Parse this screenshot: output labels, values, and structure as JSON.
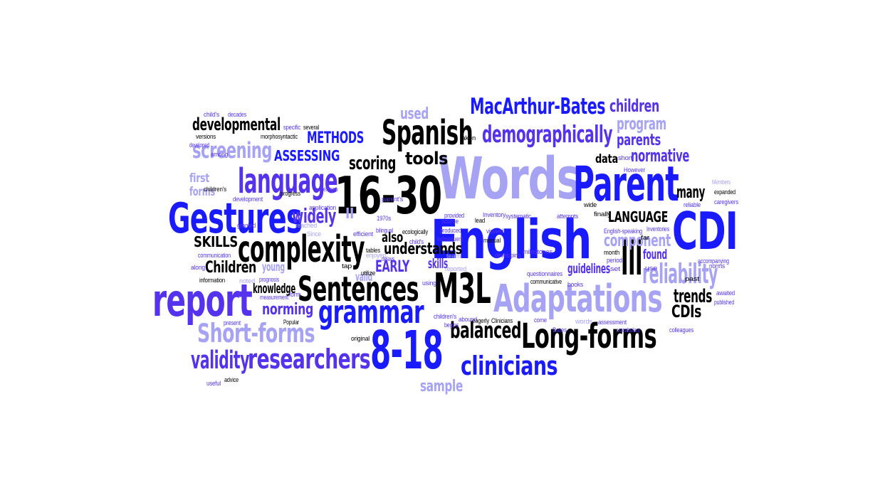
{
  "palette": {
    "black": "#000000",
    "blue": "#1a1aff",
    "violet": "#5533ee",
    "lavender": "#a6a2f4",
    "light": "#c4c1f8"
  },
  "words": [
    {
      "text": "Words",
      "color": "lavender"
    },
    {
      "text": "English",
      "color": "blue"
    },
    {
      "text": "16-30",
      "color": "black"
    },
    {
      "text": "Parent",
      "color": "blue"
    },
    {
      "text": "CDI",
      "color": "blue"
    },
    {
      "text": "Gestures",
      "color": "blue"
    },
    {
      "text": "report",
      "color": "violet"
    },
    {
      "text": "8-18",
      "color": "blue"
    },
    {
      "text": "Adaptations",
      "color": "lavender"
    },
    {
      "text": "M3L",
      "color": "black"
    },
    {
      "text": "Sentences",
      "color": "black"
    },
    {
      "text": "complexity",
      "color": "black"
    },
    {
      "text": "language",
      "color": "violet"
    },
    {
      "text": "Spanish",
      "color": "black"
    },
    {
      "text": "Long-forms",
      "color": "black"
    },
    {
      "text": "III",
      "color": "black"
    },
    {
      "text": "grammar",
      "color": "blue"
    },
    {
      "text": "Short-forms",
      "color": "lavender"
    },
    {
      "text": "researchers",
      "color": "violet"
    },
    {
      "text": "clinicians",
      "color": "blue"
    },
    {
      "text": "validity",
      "color": "violet"
    },
    {
      "text": "MacArthur-Bates",
      "color": "blue"
    },
    {
      "text": "demographically",
      "color": "violet"
    },
    {
      "text": "reliability",
      "color": "lavender"
    },
    {
      "text": "balanced",
      "color": "black"
    },
    {
      "text": "screening",
      "color": "lavender"
    },
    {
      "text": "children",
      "color": "violet"
    },
    {
      "text": "program",
      "color": "lavender"
    },
    {
      "text": "developmental",
      "color": "black"
    },
    {
      "text": "parents",
      "color": "violet"
    },
    {
      "text": "normative",
      "color": "violet"
    },
    {
      "text": "understands",
      "color": "black"
    },
    {
      "text": "trends",
      "color": "black"
    },
    {
      "text": "CDIs",
      "color": "black"
    },
    {
      "text": "tools",
      "color": "black"
    },
    {
      "text": "scoring",
      "color": "black"
    },
    {
      "text": "many",
      "color": "black"
    },
    {
      "text": "widely",
      "color": "violet"
    },
    {
      "text": "Children",
      "color": "black"
    },
    {
      "text": "component",
      "color": "lavender"
    },
    {
      "text": "sample",
      "color": "lavender"
    },
    {
      "text": "used",
      "color": "lavender"
    },
    {
      "text": "METHODS",
      "color": "blue"
    },
    {
      "text": "ASSESSING",
      "color": "blue"
    },
    {
      "text": "LANGUAGE",
      "color": "black"
    },
    {
      "text": "SKILLS",
      "color": "black"
    },
    {
      "text": "EARLY",
      "color": "violet"
    },
    {
      "text": "norming",
      "color": "violet"
    },
    {
      "text": "knowledge",
      "color": "black"
    },
    {
      "text": "guidelines",
      "color": "violet"
    },
    {
      "text": "found",
      "color": "violet"
    },
    {
      "text": "skills",
      "color": "violet"
    },
    {
      "text": "also",
      "color": "black"
    },
    {
      "text": "data",
      "color": "black"
    },
    {
      "text": "first",
      "color": "lavender"
    },
    {
      "text": "young",
      "color": "lavender"
    },
    {
      "text": "valid",
      "color": "lavender"
    },
    {
      "text": "forms",
      "color": "lavender"
    },
    {
      "text": "II",
      "color": "lavender"
    },
    {
      "text": "child's",
      "color": "violet"
    },
    {
      "text": "decades",
      "color": "violet"
    },
    {
      "text": "versions",
      "color": "black"
    },
    {
      "text": "morphosyntactic",
      "color": "black"
    },
    {
      "text": "specific",
      "color": "violet"
    },
    {
      "text": "several",
      "color": "black"
    },
    {
      "text": "taken",
      "color": "black"
    },
    {
      "text": "developed",
      "color": "violet"
    },
    {
      "text": "among",
      "color": "violet"
    },
    {
      "text": "children's",
      "color": "black"
    },
    {
      "text": "progress",
      "color": "black"
    },
    {
      "text": "Mexican",
      "color": "violet"
    },
    {
      "text": "application",
      "color": "violet"
    },
    {
      "text": "reached",
      "color": "lavender"
    },
    {
      "text": "parent's",
      "color": "violet"
    },
    {
      "text": "development",
      "color": "violet"
    },
    {
      "text": "granted",
      "color": "violet"
    },
    {
      "text": "Since",
      "color": "lavender"
    },
    {
      "text": "communication",
      "color": "violet"
    },
    {
      "text": "1970s",
      "color": "violet"
    },
    {
      "text": "efficient",
      "color": "violet"
    },
    {
      "text": "bilingual",
      "color": "violet"
    },
    {
      "text": "ecologically",
      "color": "black"
    },
    {
      "text": "tables",
      "color": "black"
    },
    {
      "text": "enjoyed",
      "color": "lavender"
    },
    {
      "text": "utilize",
      "color": "black"
    },
    {
      "text": "tap",
      "color": "black"
    },
    {
      "text": "along",
      "color": "violet"
    },
    {
      "text": "information",
      "color": "black"
    },
    {
      "text": "noted",
      "color": "lavender"
    },
    {
      "text": "prognosis",
      "color": "violet"
    },
    {
      "text": "measurement",
      "color": "violet"
    },
    {
      "text": "form",
      "color": "violet"
    },
    {
      "text": "present",
      "color": "violet"
    },
    {
      "text": "Popular",
      "color": "black"
    },
    {
      "text": "useful",
      "color": "violet"
    },
    {
      "text": "advice",
      "color": "black"
    },
    {
      "text": "original",
      "color": "black"
    },
    {
      "text": "provided",
      "color": "violet"
    },
    {
      "text": "source",
      "color": "violet"
    },
    {
      "text": "produced",
      "color": "violet"
    },
    {
      "text": "subsequent",
      "color": "violet"
    },
    {
      "text": "child's",
      "color": "violet"
    },
    {
      "text": "team",
      "color": "lavender"
    },
    {
      "text": "reported",
      "color": "lavender"
    },
    {
      "text": "using",
      "color": "violet"
    },
    {
      "text": "children's",
      "color": "violet"
    },
    {
      "text": "abound",
      "color": "violet"
    },
    {
      "text": "eagerly",
      "color": "black"
    },
    {
      "text": "Clinicians",
      "color": "black"
    },
    {
      "text": "begins",
      "color": "violet"
    },
    {
      "text": "developing",
      "color": "violet"
    },
    {
      "text": "lead",
      "color": "black"
    },
    {
      "text": "Inventory",
      "color": "violet"
    },
    {
      "text": "systematic",
      "color": "violet"
    },
    {
      "text": "attempts",
      "color": "violet"
    },
    {
      "text": "viewed",
      "color": "violet"
    },
    {
      "text": "manual",
      "color": "black"
    },
    {
      "text": "milestones",
      "color": "violet"
    },
    {
      "text": "questionnaires",
      "color": "violet"
    },
    {
      "text": "communicative",
      "color": "black"
    },
    {
      "text": "come",
      "color": "violet"
    },
    {
      "text": "books",
      "color": "violet"
    },
    {
      "text": "Bates",
      "color": "violet"
    },
    {
      "text": "words",
      "color": "lavender"
    },
    {
      "text": "assessment",
      "color": "violet"
    },
    {
      "text": "vocabulary",
      "color": "violet"
    },
    {
      "text": "short",
      "color": "violet"
    },
    {
      "text": "However",
      "color": "violet"
    },
    {
      "text": "wide",
      "color": "black"
    },
    {
      "text": "finally",
      "color": "black"
    },
    {
      "text": "English-speaking",
      "color": "violet"
    },
    {
      "text": "Inventories",
      "color": "violet"
    },
    {
      "text": "far",
      "color": "black"
    },
    {
      "text": "month",
      "color": "black"
    },
    {
      "text": "period",
      "color": "violet"
    },
    {
      "text": "set",
      "color": "violet"
    },
    {
      "text": "use",
      "color": "violet"
    },
    {
      "text": "past",
      "color": "black"
    },
    {
      "text": "accompanying",
      "color": "violet"
    },
    {
      "text": "Members",
      "color": "lavender"
    },
    {
      "text": "expanded",
      "color": "black"
    },
    {
      "text": "caregivers",
      "color": "violet"
    },
    {
      "text": "reliable",
      "color": "violet"
    },
    {
      "text": "norms",
      "color": "violet"
    },
    {
      "text": "awaited",
      "color": "violet"
    },
    {
      "text": "published",
      "color": "violet"
    },
    {
      "text": "colleagues",
      "color": "violet"
    },
    {
      "text": "delays",
      "color": "violet"
    }
  ]
}
